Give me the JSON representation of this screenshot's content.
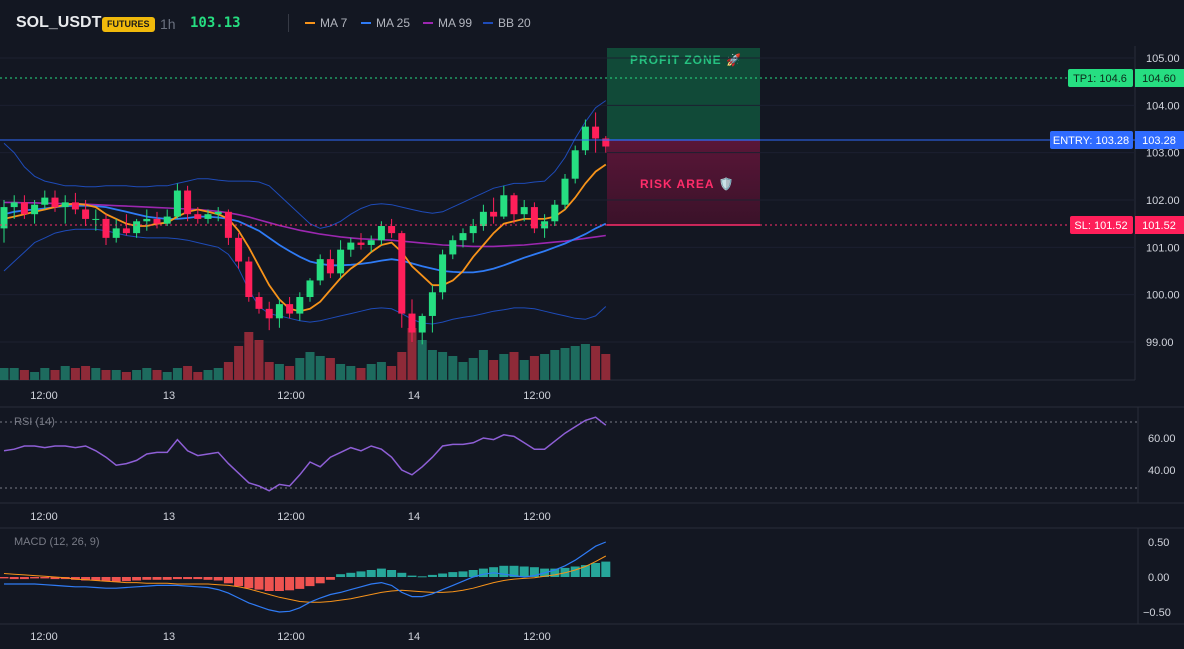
{
  "header": {
    "symbol": "SOL_USDT",
    "badge": "FUTURES",
    "timeframe": "1h",
    "last_price": "103.13",
    "legend": [
      {
        "label": "MA 7",
        "color": "#f7931a"
      },
      {
        "label": "MA 25",
        "color": "#2f7bf5"
      },
      {
        "label": "MA 99",
        "color": "#9c27b0"
      },
      {
        "label": "BB 20",
        "color": "#1e4bb8"
      }
    ]
  },
  "colors": {
    "background": "#131722",
    "up": "#26de81",
    "down": "#ff1f5a",
    "volume_up": "#1d6b5e",
    "volume_down": "#8e2a38",
    "profit_zone": "#114a38",
    "risk_zone": "#4d1330"
  },
  "price_axis": {
    "ticks": [
      "105.00",
      "104.00",
      "103.00",
      "102.00",
      "101.00",
      "100.00",
      "99.00"
    ],
    "range": [
      98.2,
      105.3
    ]
  },
  "time_axis": {
    "labels": [
      "12:00",
      "13",
      "12:00",
      "14",
      "12:00"
    ]
  },
  "trade": {
    "tp_label": "TP1: 104.6",
    "tp_price": "104.60",
    "entry_label": "ENTRY: 103.28",
    "entry_price": "103.28",
    "sl_label": "SL: 101.52",
    "sl_price": "101.52",
    "profit_zone_label": "PROFIT ZONE 🚀",
    "risk_zone_label": "RISK AREA 🛡️"
  },
  "rsi": {
    "title": "RSI (14)",
    "ticks": [
      "60.00",
      "40.00"
    ],
    "values": [
      52,
      53,
      55,
      55,
      54,
      55,
      55,
      54,
      55,
      52,
      48,
      43,
      44,
      46,
      50,
      51,
      51,
      59,
      52,
      49,
      50,
      51,
      44,
      38,
      32,
      30,
      27,
      31,
      30,
      37,
      45,
      42,
      48,
      51,
      54,
      52,
      55,
      53,
      48,
      40,
      37,
      42,
      48,
      55,
      56,
      56,
      57,
      60,
      59,
      62,
      61,
      57,
      53,
      53,
      58,
      63,
      67,
      71,
      73,
      68
    ]
  },
  "macd": {
    "title": "MACD (12, 26, 9)",
    "ticks": [
      "0.50",
      "0.00",
      "−0.50"
    ],
    "histogram": [
      -0.02,
      -0.03,
      -0.03,
      -0.02,
      -0.02,
      -0.03,
      -0.03,
      -0.04,
      -0.05,
      -0.05,
      -0.06,
      -0.07,
      -0.06,
      -0.05,
      -0.04,
      -0.04,
      -0.04,
      -0.03,
      -0.03,
      -0.03,
      -0.04,
      -0.05,
      -0.09,
      -0.13,
      -0.16,
      -0.18,
      -0.2,
      -0.2,
      -0.19,
      -0.17,
      -0.13,
      -0.09,
      -0.04,
      0.04,
      0.06,
      0.08,
      0.1,
      0.12,
      0.1,
      0.06,
      0.02,
      0.01,
      0.03,
      0.05,
      0.07,
      0.08,
      0.1,
      0.12,
      0.14,
      0.16,
      0.16,
      0.15,
      0.14,
      0.12,
      0.12,
      0.13,
      0.15,
      0.17,
      0.2,
      0.22
    ],
    "macd_line": [
      -0.1,
      -0.1,
      -0.1,
      -0.1,
      -0.11,
      -0.12,
      -0.13,
      -0.14,
      -0.14,
      -0.15,
      -0.16,
      -0.16,
      -0.15,
      -0.14,
      -0.13,
      -0.12,
      -0.12,
      -0.12,
      -0.13,
      -0.14,
      -0.15,
      -0.18,
      -0.23,
      -0.3,
      -0.37,
      -0.42,
      -0.47,
      -0.5,
      -0.49,
      -0.44,
      -0.36,
      -0.3,
      -0.25,
      -0.22,
      -0.18,
      -0.14,
      -0.1,
      -0.08,
      -0.12,
      -0.22,
      -0.28,
      -0.28,
      -0.24,
      -0.18,
      -0.12,
      -0.06,
      0.0,
      0.04,
      0.06,
      0.04,
      0.02,
      0.0,
      0.02,
      0.06,
      0.1,
      0.16,
      0.24,
      0.34,
      0.44,
      0.5
    ],
    "signal_line": [
      0.05,
      0.04,
      0.03,
      0.02,
      0.01,
      0.0,
      -0.01,
      -0.03,
      -0.04,
      -0.05,
      -0.06,
      -0.07,
      -0.08,
      -0.08,
      -0.09,
      -0.09,
      -0.09,
      -0.1,
      -0.1,
      -0.1,
      -0.1,
      -0.11,
      -0.12,
      -0.14,
      -0.17,
      -0.21,
      -0.25,
      -0.29,
      -0.32,
      -0.35,
      -0.36,
      -0.36,
      -0.35,
      -0.33,
      -0.31,
      -0.28,
      -0.25,
      -0.22,
      -0.2,
      -0.19,
      -0.2,
      -0.21,
      -0.22,
      -0.22,
      -0.21,
      -0.19,
      -0.16,
      -0.12,
      -0.08,
      -0.05,
      -0.03,
      -0.02,
      -0.01,
      0.01,
      0.03,
      0.06,
      0.1,
      0.15,
      0.22,
      0.3
    ]
  },
  "chart_data": {
    "type": "candlestick",
    "candles": [
      {
        "o": 101.4,
        "h": 102.0,
        "l": 101.1,
        "c": 101.85
      },
      {
        "o": 101.85,
        "h": 102.1,
        "l": 101.6,
        "c": 101.95
      },
      {
        "o": 101.95,
        "h": 102.1,
        "l": 101.6,
        "c": 101.7
      },
      {
        "o": 101.7,
        "h": 102.0,
        "l": 101.5,
        "c": 101.9
      },
      {
        "o": 101.9,
        "h": 102.2,
        "l": 101.8,
        "c": 102.05
      },
      {
        "o": 102.05,
        "h": 102.2,
        "l": 101.75,
        "c": 101.85
      },
      {
        "o": 101.85,
        "h": 102.1,
        "l": 101.5,
        "c": 101.95
      },
      {
        "o": 101.95,
        "h": 102.15,
        "l": 101.7,
        "c": 101.8
      },
      {
        "o": 101.8,
        "h": 102.0,
        "l": 101.45,
        "c": 101.6
      },
      {
        "o": 101.6,
        "h": 101.8,
        "l": 101.35,
        "c": 101.6
      },
      {
        "o": 101.6,
        "h": 101.7,
        "l": 101.05,
        "c": 101.2
      },
      {
        "o": 101.2,
        "h": 101.6,
        "l": 101.1,
        "c": 101.4
      },
      {
        "o": 101.4,
        "h": 101.7,
        "l": 101.25,
        "c": 101.3
      },
      {
        "o": 101.3,
        "h": 101.6,
        "l": 101.2,
        "c": 101.55
      },
      {
        "o": 101.55,
        "h": 101.8,
        "l": 101.35,
        "c": 101.6
      },
      {
        "o": 101.6,
        "h": 101.75,
        "l": 101.4,
        "c": 101.5
      },
      {
        "o": 101.5,
        "h": 101.8,
        "l": 101.45,
        "c": 101.65
      },
      {
        "o": 101.65,
        "h": 102.35,
        "l": 101.6,
        "c": 102.2
      },
      {
        "o": 102.2,
        "h": 102.3,
        "l": 101.55,
        "c": 101.7
      },
      {
        "o": 101.7,
        "h": 101.85,
        "l": 101.5,
        "c": 101.6
      },
      {
        "o": 101.6,
        "h": 101.8,
        "l": 101.5,
        "c": 101.7
      },
      {
        "o": 101.7,
        "h": 101.85,
        "l": 101.55,
        "c": 101.75
      },
      {
        "o": 101.75,
        "h": 101.8,
        "l": 101.05,
        "c": 101.2
      },
      {
        "o": 101.2,
        "h": 101.3,
        "l": 100.55,
        "c": 100.7
      },
      {
        "o": 100.7,
        "h": 100.8,
        "l": 99.85,
        "c": 99.95
      },
      {
        "o": 99.95,
        "h": 100.05,
        "l": 99.6,
        "c": 99.7
      },
      {
        "o": 99.7,
        "h": 99.85,
        "l": 99.25,
        "c": 99.5
      },
      {
        "o": 99.5,
        "h": 99.9,
        "l": 99.3,
        "c": 99.8
      },
      {
        "o": 99.8,
        "h": 99.95,
        "l": 99.5,
        "c": 99.6
      },
      {
        "o": 99.6,
        "h": 100.05,
        "l": 99.45,
        "c": 99.95
      },
      {
        "o": 99.95,
        "h": 100.35,
        "l": 99.85,
        "c": 100.3
      },
      {
        "o": 100.3,
        "h": 100.85,
        "l": 100.2,
        "c": 100.75
      },
      {
        "o": 100.75,
        "h": 100.95,
        "l": 100.35,
        "c": 100.45
      },
      {
        "o": 100.45,
        "h": 101.15,
        "l": 100.35,
        "c": 100.95
      },
      {
        "o": 100.95,
        "h": 101.2,
        "l": 100.8,
        "c": 101.1
      },
      {
        "o": 101.1,
        "h": 101.3,
        "l": 100.95,
        "c": 101.05
      },
      {
        "o": 101.05,
        "h": 101.25,
        "l": 100.9,
        "c": 101.15
      },
      {
        "o": 101.15,
        "h": 101.55,
        "l": 101.05,
        "c": 101.45
      },
      {
        "o": 101.45,
        "h": 101.6,
        "l": 101.2,
        "c": 101.3
      },
      {
        "o": 101.3,
        "h": 101.35,
        "l": 99.3,
        "c": 99.6
      },
      {
        "o": 99.6,
        "h": 99.9,
        "l": 99.0,
        "c": 99.2
      },
      {
        "o": 99.2,
        "h": 99.6,
        "l": 98.95,
        "c": 99.55
      },
      {
        "o": 99.55,
        "h": 100.2,
        "l": 99.2,
        "c": 100.05
      },
      {
        "o": 100.05,
        "h": 100.95,
        "l": 99.9,
        "c": 100.85
      },
      {
        "o": 100.85,
        "h": 101.25,
        "l": 100.75,
        "c": 101.15
      },
      {
        "o": 101.15,
        "h": 101.4,
        "l": 101.0,
        "c": 101.3
      },
      {
        "o": 101.3,
        "h": 101.6,
        "l": 101.1,
        "c": 101.45
      },
      {
        "o": 101.45,
        "h": 101.9,
        "l": 101.35,
        "c": 101.75
      },
      {
        "o": 101.75,
        "h": 102.05,
        "l": 101.5,
        "c": 101.65
      },
      {
        "o": 101.65,
        "h": 102.3,
        "l": 101.6,
        "c": 102.1
      },
      {
        "o": 102.1,
        "h": 102.15,
        "l": 101.5,
        "c": 101.7
      },
      {
        "o": 101.7,
        "h": 102.0,
        "l": 101.55,
        "c": 101.85
      },
      {
        "o": 101.85,
        "h": 101.95,
        "l": 101.3,
        "c": 101.4
      },
      {
        "o": 101.4,
        "h": 101.7,
        "l": 101.2,
        "c": 101.55
      },
      {
        "o": 101.55,
        "h": 102.0,
        "l": 101.45,
        "c": 101.9
      },
      {
        "o": 101.9,
        "h": 102.55,
        "l": 101.8,
        "c": 102.45
      },
      {
        "o": 102.45,
        "h": 103.15,
        "l": 102.35,
        "c": 103.05
      },
      {
        "o": 103.05,
        "h": 103.7,
        "l": 102.95,
        "c": 103.55
      },
      {
        "o": 103.55,
        "h": 103.85,
        "l": 103.0,
        "c": 103.3
      },
      {
        "o": 103.3,
        "h": 103.35,
        "l": 103.0,
        "c": 103.13
      }
    ],
    "volume": [
      6,
      6,
      5,
      4,
      6,
      5,
      7,
      6,
      7,
      6,
      5,
      5,
      4,
      5,
      6,
      5,
      4,
      6,
      7,
      4,
      5,
      6,
      9,
      17,
      24,
      20,
      9,
      8,
      7,
      11,
      14,
      12,
      11,
      8,
      7,
      6,
      8,
      9,
      7,
      14,
      26,
      20,
      15,
      14,
      12,
      9,
      11,
      15,
      10,
      13,
      14,
      10,
      12,
      13,
      15,
      16,
      17,
      18,
      17,
      13
    ],
    "ma7": [
      101.6,
      101.65,
      101.7,
      101.75,
      101.8,
      101.85,
      101.9,
      101.92,
      101.9,
      101.85,
      101.7,
      101.6,
      101.5,
      101.45,
      101.45,
      101.5,
      101.52,
      101.65,
      101.75,
      101.8,
      101.75,
      101.7,
      101.6,
      101.35,
      101.0,
      100.6,
      100.2,
      99.9,
      99.7,
      99.65,
      99.7,
      99.85,
      100.1,
      100.35,
      100.55,
      100.7,
      100.9,
      101.05,
      101.1,
      100.9,
      100.6,
      100.4,
      100.2,
      100.2,
      100.3,
      100.5,
      100.8,
      101.05,
      101.3,
      101.5,
      101.55,
      101.6,
      101.6,
      101.6,
      101.65,
      101.8,
      102.05,
      102.35,
      102.6,
      102.75
    ],
    "ma25": [
      101.7,
      101.75,
      101.78,
      101.8,
      101.82,
      101.85,
      101.87,
      101.88,
      101.88,
      101.87,
      101.85,
      101.8,
      101.75,
      101.7,
      101.65,
      101.62,
      101.6,
      101.6,
      101.62,
      101.65,
      101.65,
      101.63,
      101.6,
      101.55,
      101.45,
      101.35,
      101.2,
      101.05,
      100.92,
      100.8,
      100.7,
      100.65,
      100.62,
      100.62,
      100.63,
      100.65,
      100.68,
      100.72,
      100.75,
      100.72,
      100.66,
      100.6,
      100.55,
      100.5,
      100.48,
      100.47,
      100.47,
      100.5,
      100.55,
      100.62,
      100.7,
      100.78,
      100.85,
      100.92,
      101.0,
      101.08,
      101.18,
      101.28,
      101.4,
      101.5
    ],
    "ma99": [
      101.95,
      101.95,
      101.94,
      101.94,
      101.93,
      101.93,
      101.92,
      101.92,
      101.91,
      101.9,
      101.89,
      101.88,
      101.87,
      101.86,
      101.85,
      101.84,
      101.83,
      101.82,
      101.81,
      101.8,
      101.78,
      101.76,
      101.73,
      101.69,
      101.64,
      101.58,
      101.52,
      101.46,
      101.41,
      101.36,
      101.32,
      101.28,
      101.25,
      101.22,
      101.2,
      101.18,
      101.17,
      101.16,
      101.15,
      101.13,
      101.11,
      101.09,
      101.07,
      101.05,
      101.04,
      101.03,
      101.02,
      101.02,
      101.02,
      101.03,
      101.04,
      101.05,
      101.07,
      101.09,
      101.11,
      101.13,
      101.16,
      101.19,
      101.22,
      101.25
    ],
    "bb_upper": [
      103.2,
      103.0,
      102.7,
      102.5,
      102.4,
      102.35,
      102.3,
      102.3,
      102.28,
      102.28,
      102.3,
      102.3,
      102.3,
      102.28,
      102.28,
      102.3,
      102.3,
      102.35,
      102.4,
      102.45,
      102.45,
      102.42,
      102.4,
      102.4,
      102.4,
      102.38,
      102.3,
      102.1,
      101.9,
      101.7,
      101.5,
      101.4,
      101.45,
      101.55,
      101.7,
      101.82,
      101.9,
      101.92,
      101.9,
      101.85,
      101.8,
      101.75,
      101.72,
      101.75,
      101.85,
      101.95,
      102.05,
      102.15,
      102.25,
      102.3,
      102.35,
      102.35,
      102.38,
      102.4,
      102.6,
      102.9,
      103.3,
      103.65,
      103.95,
      104.1
    ],
    "bb_lower": [
      100.5,
      100.7,
      100.9,
      101.1,
      101.2,
      101.3,
      101.35,
      101.38,
      101.38,
      101.38,
      101.35,
      101.3,
      101.25,
      101.22,
      101.2,
      101.2,
      101.2,
      101.18,
      101.15,
      101.1,
      101.05,
      101.0,
      100.85,
      100.55,
      100.1,
      99.75,
      99.6,
      99.55,
      99.5,
      99.45,
      99.42,
      99.45,
      99.5,
      99.55,
      99.6,
      99.65,
      99.7,
      99.72,
      99.7,
      99.6,
      99.48,
      99.4,
      99.38,
      99.42,
      99.48,
      99.52,
      99.55,
      99.6,
      99.65,
      99.68,
      99.72,
      99.72,
      99.7,
      99.65,
      99.6,
      99.55,
      99.5,
      99.48,
      99.55,
      99.75
    ]
  }
}
